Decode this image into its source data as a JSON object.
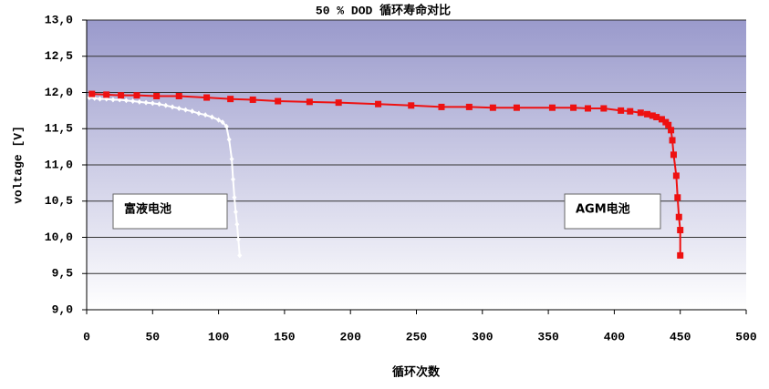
{
  "chart_data": {
    "type": "line",
    "title": "50 % DOD 循环寿命对比",
    "x_label": "循环次数",
    "y_label": "voltage [V]",
    "xlim": [
      0,
      500
    ],
    "xticks": [
      0,
      50,
      100,
      150,
      200,
      250,
      300,
      350,
      400,
      450,
      500
    ],
    "ylim": [
      9,
      13
    ],
    "yticks": [
      {
        "value": 9,
        "label": "9,0"
      },
      {
        "value": 9.5,
        "label": "9,5"
      },
      {
        "value": 10,
        "label": "10,0"
      },
      {
        "value": 10.5,
        "label": "10,5"
      },
      {
        "value": 11,
        "label": "11,0"
      },
      {
        "value": 11.5,
        "label": "11,5"
      },
      {
        "value": 12,
        "label": "12,0"
      },
      {
        "value": 12.5,
        "label": "12,5"
      },
      {
        "value": 13,
        "label": "13,0"
      }
    ],
    "grid": true,
    "series": [
      {
        "name": "富液电池",
        "color": "#ffffff",
        "x": [
          2,
          6,
          10,
          15,
          20,
          25,
          30,
          35,
          40,
          45,
          50,
          55,
          60,
          65,
          70,
          75,
          80,
          85,
          90,
          95,
          100,
          103,
          106,
          108,
          110,
          111,
          112,
          113,
          114,
          115,
          116
        ],
        "values": [
          11.93,
          11.92,
          11.91,
          11.91,
          11.9,
          11.9,
          11.89,
          11.88,
          11.87,
          11.86,
          11.85,
          11.84,
          11.82,
          11.8,
          11.78,
          11.76,
          11.74,
          11.71,
          11.69,
          11.66,
          11.62,
          11.59,
          11.53,
          11.35,
          11.08,
          10.8,
          10.55,
          10.35,
          10.18,
          9.97,
          9.75
        ]
      },
      {
        "name": "AGM电池",
        "color": "#ee1111",
        "x": [
          4,
          15,
          26,
          38,
          53,
          70,
          91,
          109,
          126,
          145,
          169,
          191,
          221,
          246,
          269,
          290,
          308,
          326,
          353,
          369,
          380,
          392,
          405,
          412,
          420,
          425,
          429,
          432,
          436,
          439,
          441,
          443,
          444,
          445,
          447,
          448,
          449,
          450,
          450
        ],
        "values": [
          11.98,
          11.97,
          11.96,
          11.96,
          11.95,
          11.95,
          11.93,
          11.91,
          11.9,
          11.88,
          11.87,
          11.86,
          11.84,
          11.82,
          11.8,
          11.8,
          11.79,
          11.79,
          11.79,
          11.79,
          11.78,
          11.78,
          11.75,
          11.74,
          11.72,
          11.7,
          11.68,
          11.66,
          11.63,
          11.59,
          11.55,
          11.48,
          11.34,
          11.14,
          10.85,
          10.55,
          10.28,
          10.1,
          9.75
        ]
      }
    ]
  }
}
